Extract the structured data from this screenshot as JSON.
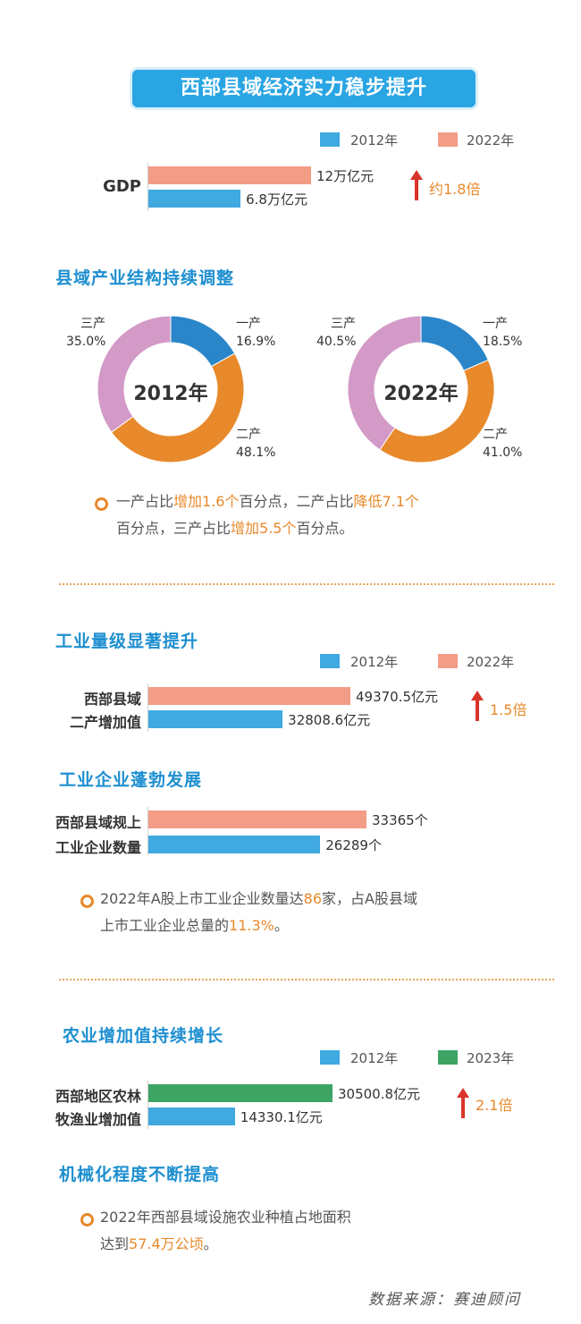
{
  "title": "西部县域经济实力稳步提升",
  "gdp": {
    "legend": [
      {
        "label": "2012年",
        "color": "#3fa9e0"
      },
      {
        "label": "2022年",
        "color": "#f39c86"
      }
    ],
    "label": "GDP",
    "growth": "约1.8倍"
  },
  "structure": {
    "title": "县域产业结构持续调整",
    "note_parts": [
      "一产占比",
      "增加1.6个",
      "百分点，二产占比",
      "降低7.1个",
      "百分点，三产占比",
      "增加5.5个",
      "百分点。"
    ]
  },
  "industry": {
    "title": "工业量级显著提升",
    "legend": [
      {
        "label": "2012年",
        "color": "#3fa9e0"
      },
      {
        "label": "2022年",
        "color": "#f39c86"
      }
    ],
    "label_line1": "西部县域",
    "label_line2": "二产增加值",
    "growth": "1.5倍"
  },
  "enterprise": {
    "title": "工业企业蓬勃发展",
    "label_line1": "西部县域规上",
    "label_line2": "工业企业数量",
    "note_parts": [
      "2022年A股上市工业企业数量达",
      "86",
      "家，占A股县域",
      "上市工业企业总量的",
      "11.3%",
      "。"
    ]
  },
  "agri": {
    "title": "农业增加值持续增长",
    "legend": [
      {
        "label": "2012年",
        "color": "#3fa9e0"
      },
      {
        "label": "2023年",
        "color": "#3ea464"
      }
    ],
    "label_line1": "西部地区农林",
    "label_line2": "牧渔业增加值",
    "growth": "2.1倍"
  },
  "mech": {
    "title": "机械化程度不断提高",
    "note_parts": [
      "2022年西部县域设施农业种植占地面积",
      "达到",
      "57.4万公顷",
      "。"
    ]
  },
  "source": "数据来源：赛迪顾问",
  "chart_data": [
    {
      "type": "bar",
      "title": "",
      "categories": [
        "GDP"
      ],
      "series": [
        {
          "name": "2022年",
          "values": [
            12
          ],
          "labels": [
            "12万亿元"
          ],
          "color": "#f39c86"
        },
        {
          "name": "2012年",
          "values": [
            6.8
          ],
          "labels": [
            "6.8万亿元"
          ],
          "color": "#3fa9e0"
        }
      ],
      "unit": "万亿元"
    },
    {
      "type": "pie",
      "title": "",
      "center_label": "2012年",
      "labels": [
        "一产",
        "二产",
        "三产"
      ],
      "values": [
        16.9,
        48.1,
        35.0
      ],
      "value_labels": [
        "16.9%",
        "48.1%",
        "35.0%"
      ],
      "colors": [
        "#2a86c9",
        "#e8892b",
        "#d39ac8"
      ]
    },
    {
      "type": "pie",
      "title": "",
      "center_label": "2022年",
      "labels": [
        "一产",
        "二产",
        "三产"
      ],
      "values": [
        18.5,
        41.0,
        40.5
      ],
      "value_labels": [
        "18.5%",
        "41.0%",
        "40.5%"
      ],
      "colors": [
        "#2a86c9",
        "#e8892b",
        "#d39ac8"
      ]
    },
    {
      "type": "bar",
      "title": "",
      "categories": [
        "西部县域二产增加值"
      ],
      "series": [
        {
          "name": "2022年",
          "values": [
            49370.5
          ],
          "labels": [
            "49370.5亿元"
          ],
          "color": "#f39c86"
        },
        {
          "name": "2012年",
          "values": [
            32808.6
          ],
          "labels": [
            "32808.6亿元"
          ],
          "color": "#3fa9e0"
        }
      ],
      "unit": "亿元"
    },
    {
      "type": "bar",
      "title": "",
      "categories": [
        "西部县域规上工业企业数量"
      ],
      "series": [
        {
          "name": "2022年",
          "values": [
            33365
          ],
          "labels": [
            "33365个"
          ],
          "color": "#f39c86"
        },
        {
          "name": "2012年",
          "values": [
            26289
          ],
          "labels": [
            "26289个"
          ],
          "color": "#3fa9e0"
        }
      ],
      "unit": "个"
    },
    {
      "type": "bar",
      "title": "",
      "categories": [
        "西部地区农林牧渔业增加值"
      ],
      "series": [
        {
          "name": "2023年",
          "values": [
            30500.8
          ],
          "labels": [
            "30500.8亿元"
          ],
          "color": "#3ea464"
        },
        {
          "name": "2012年",
          "values": [
            14330.1
          ],
          "labels": [
            "14330.1亿元"
          ],
          "color": "#3fa9e0"
        }
      ],
      "unit": "亿元"
    }
  ]
}
